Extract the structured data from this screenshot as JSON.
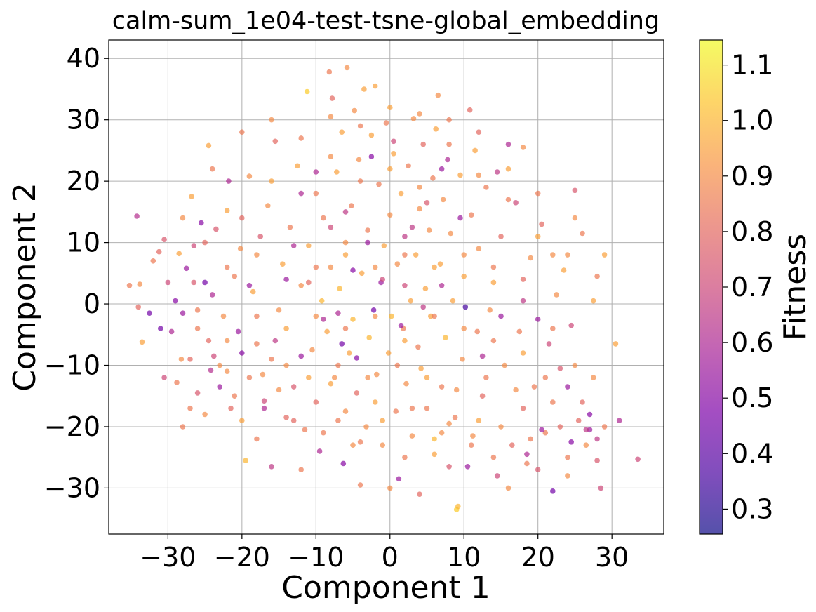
{
  "chart_data": {
    "type": "scatter",
    "title": "calm-sum_1e04-test-tsne-global_embedding",
    "xlabel": "Component 1",
    "ylabel": "Component 2",
    "xlim": [
      -38,
      37
    ],
    "ylim": [
      -37.5,
      43
    ],
    "xticks": [
      -30,
      -20,
      -10,
      0,
      10,
      20,
      30
    ],
    "yticks": [
      -30,
      -20,
      -10,
      0,
      10,
      20,
      30,
      40
    ],
    "grid": true,
    "colormap": "plasma",
    "point_alpha": 0.7,
    "colorbar": {
      "label": "Fitness",
      "range": [
        0.255,
        1.145
      ],
      "ticks": [
        0.3,
        0.4,
        0.5,
        0.6,
        0.7,
        0.8,
        0.9,
        1.0,
        1.1
      ]
    },
    "points": [
      [
        -35.2,
        3.0,
        0.85
      ],
      [
        -34.2,
        14.3,
        0.62
      ],
      [
        -33.8,
        3.2,
        0.9
      ],
      [
        -33.5,
        -6.2,
        0.95
      ],
      [
        -32.5,
        -1.5,
        0.45
      ],
      [
        -31.2,
        8.5,
        0.8
      ],
      [
        -30.5,
        10.5,
        0.75
      ],
      [
        -30.0,
        3.5,
        0.7
      ],
      [
        -29.5,
        -4.5,
        0.6
      ],
      [
        -29.0,
        0.5,
        0.5
      ],
      [
        -28.8,
        -12.8,
        0.85
      ],
      [
        -28.5,
        8.2,
        0.95
      ],
      [
        -28.2,
        -9.0,
        0.9
      ],
      [
        -27.5,
        5.8,
        0.55
      ],
      [
        -27.0,
        -17.0,
        0.85
      ],
      [
        -26.5,
        3.5,
        0.75
      ],
      [
        -26.8,
        17.5,
        0.95
      ],
      [
        -26.0,
        -1.0,
        0.85
      ],
      [
        -25.5,
        13.2,
        0.5
      ],
      [
        -25.0,
        10.0,
        0.8
      ],
      [
        -25.0,
        3.5,
        0.45
      ],
      [
        -24.5,
        -6.0,
        0.8
      ],
      [
        -24.2,
        -10.8,
        0.62
      ],
      [
        -24.5,
        25.8,
        0.95
      ],
      [
        -23.8,
        -8.5,
        0.7
      ],
      [
        -23.5,
        12.2,
        0.75
      ],
      [
        -23.0,
        -13.5,
        0.55
      ],
      [
        -22.5,
        -2.0,
        0.9
      ],
      [
        -22.0,
        15.2,
        0.95
      ],
      [
        -21.8,
        20.0,
        0.6
      ],
      [
        -21.5,
        -17.0,
        0.8
      ],
      [
        -21.0,
        4.5,
        0.85
      ],
      [
        -20.5,
        -4.5,
        0.55
      ],
      [
        -20.2,
        9.0,
        0.9
      ],
      [
        -20.0,
        -19.0,
        0.95
      ],
      [
        -19.5,
        -25.5,
        1.0
      ],
      [
        -19.0,
        20.8,
        0.9
      ],
      [
        -18.5,
        2.0,
        0.95
      ],
      [
        -18.0,
        -6.5,
        0.85
      ],
      [
        -17.5,
        11.0,
        0.75
      ],
      [
        -17.2,
        -11.5,
        0.9
      ],
      [
        -17.0,
        -15.8,
        0.7
      ],
      [
        -16.5,
        16.0,
        0.9
      ],
      [
        -16.0,
        -9.0,
        0.85
      ],
      [
        -15.5,
        26.5,
        0.8
      ],
      [
        -15.0,
        -1.0,
        0.9
      ],
      [
        -14.5,
        6.5,
        0.95
      ],
      [
        -14.0,
        -18.5,
        0.8
      ],
      [
        -13.5,
        12.5,
        0.85
      ],
      [
        -13.0,
        -13.5,
        0.75
      ],
      [
        -12.5,
        22.5,
        0.95
      ],
      [
        -12.0,
        3.0,
        0.9
      ],
      [
        -11.5,
        -20.5,
        0.85
      ],
      [
        -11.2,
        34.6,
        1.05
      ],
      [
        -11.0,
        9.5,
        0.95
      ],
      [
        -10.5,
        -7.5,
        0.9
      ],
      [
        -10.0,
        18.0,
        0.85
      ],
      [
        -9.5,
        -24.0,
        0.6
      ],
      [
        -9.2,
        0.5,
        1.0
      ],
      [
        -9.0,
        14.0,
        0.85
      ],
      [
        -8.5,
        -4.5,
        0.95
      ],
      [
        -8.2,
        37.8,
        0.85
      ],
      [
        -8.0,
        6.0,
        0.9
      ],
      [
        -7.8,
        33.5,
        0.8
      ],
      [
        -7.5,
        -12.0,
        0.9
      ],
      [
        -7.2,
        21.5,
        0.95
      ],
      [
        -7.0,
        -19.0,
        0.85
      ],
      [
        -6.8,
        2.5,
        1.0
      ],
      [
        -6.5,
        28.0,
        0.95
      ],
      [
        -6.3,
        -26.0,
        0.5
      ],
      [
        -6.0,
        10.0,
        0.9
      ],
      [
        -5.8,
        38.5,
        0.9
      ],
      [
        -5.5,
        -8.0,
        0.95
      ],
      [
        -5.2,
        16.0,
        0.85
      ],
      [
        -5.0,
        -2.5,
        1.0
      ],
      [
        -4.8,
        31.5,
        0.9
      ],
      [
        -4.5,
        -14.5,
        0.8
      ],
      [
        -4.2,
        23.5,
        0.9
      ],
      [
        -4.0,
        -29.5,
        0.85
      ],
      [
        -3.8,
        5.0,
        0.95
      ],
      [
        -3.5,
        35.0,
        0.95
      ],
      [
        -3.2,
        -20.0,
        0.9
      ],
      [
        -3.0,
        12.0,
        0.85
      ],
      [
        -2.8,
        -5.5,
        1.0
      ],
      [
        -2.5,
        27.5,
        0.95
      ],
      [
        -2.2,
        -1.0,
        0.45
      ],
      [
        -2.0,
        35.5,
        0.95
      ],
      [
        -1.8,
        -11.5,
        0.9
      ],
      [
        -1.5,
        19.5,
        0.85
      ],
      [
        -1.2,
        3.5,
        0.55
      ],
      [
        -1.0,
        -23.0,
        0.9
      ],
      [
        -0.8,
        9.5,
        0.95
      ],
      [
        -0.5,
        29.5,
        0.85
      ],
      [
        -0.2,
        -8.0,
        0.95
      ],
      [
        0.0,
        14.5,
        0.9
      ],
      [
        0.2,
        -2.0,
        1.0
      ],
      [
        0.5,
        24.5,
        0.95
      ],
      [
        0.8,
        -17.5,
        0.85
      ],
      [
        1.0,
        6.5,
        0.9
      ],
      [
        1.2,
        -28.5,
        0.55
      ],
      [
        1.5,
        18.0,
        0.95
      ],
      [
        1.8,
        -4.0,
        0.85
      ],
      [
        2.0,
        11.0,
        0.65
      ],
      [
        2.2,
        -13.0,
        0.9
      ],
      [
        2.5,
        22.5,
        0.85
      ],
      [
        2.8,
        0.5,
        0.95
      ],
      [
        3.0,
        -21.5,
        0.9
      ],
      [
        3.2,
        30.2,
        0.9
      ],
      [
        3.5,
        8.0,
        0.95
      ],
      [
        3.8,
        -7.0,
        0.85
      ],
      [
        4.0,
        15.5,
        0.9
      ],
      [
        4.2,
        -10.5,
        0.95
      ],
      [
        4.5,
        26.0,
        0.8
      ],
      [
        4.8,
        2.5,
        0.95
      ],
      [
        5.0,
        -17.0,
        0.85
      ],
      [
        5.3,
        12.0,
        0.9
      ],
      [
        5.5,
        -2.0,
        0.95
      ],
      [
        5.8,
        20.5,
        0.85
      ],
      [
        6.0,
        -22.0,
        1.0
      ],
      [
        6.2,
        28.5,
        0.95
      ],
      [
        6.5,
        34.0,
        0.9
      ],
      [
        6.8,
        6.5,
        0.95
      ],
      [
        7.0,
        -13.5,
        0.85
      ],
      [
        7.2,
        17.0,
        0.9
      ],
      [
        7.5,
        -5.5,
        1.0
      ],
      [
        7.8,
        23.5,
        0.6
      ],
      [
        8.0,
        -26.5,
        0.75
      ],
      [
        8.2,
        11.5,
        0.9
      ],
      [
        8.5,
        0.5,
        0.95
      ],
      [
        8.8,
        -18.5,
        0.85
      ],
      [
        9.0,
        -33.5,
        1.05
      ],
      [
        9.2,
        -33.0,
        1.0
      ],
      [
        9.5,
        21.0,
        0.95
      ],
      [
        9.8,
        -9.0,
        0.9
      ],
      [
        10.0,
        4.5,
        0.95
      ],
      [
        10.2,
        -0.5,
        0.35
      ],
      [
        10.5,
        -26.5,
        0.55
      ],
      [
        10.8,
        31.6,
        0.8
      ],
      [
        11.0,
        14.5,
        0.85
      ],
      [
        11.2,
        -21.5,
        0.9
      ],
      [
        11.5,
        25.0,
        0.95
      ],
      [
        11.8,
        -4.5,
        0.85
      ],
      [
        12.0,
        9.0,
        0.9
      ],
      [
        12.5,
        -15.0,
        0.8
      ],
      [
        13.0,
        19.0,
        0.85
      ],
      [
        13.5,
        -1.0,
        0.9
      ],
      [
        14.0,
        3.5,
        0.95
      ],
      [
        14.5,
        -28.0,
        0.7
      ],
      [
        15.0,
        11.0,
        0.8
      ],
      [
        15.5,
        -10.0,
        0.9
      ],
      [
        16.0,
        26.0,
        0.6
      ],
      [
        16.5,
        -23.0,
        0.8
      ],
      [
        17.0,
        16.5,
        0.7
      ],
      [
        17.5,
        -4.5,
        0.85
      ],
      [
        18.0,
        25.5,
        0.9
      ],
      [
        18.5,
        -26.0,
        0.85
      ],
      [
        19.0,
        7.5,
        0.9
      ],
      [
        19.5,
        -13.5,
        0.85
      ],
      [
        20.0,
        -2.5,
        0.55
      ],
      [
        20.5,
        13.0,
        0.8
      ],
      [
        21.0,
        -21.0,
        0.85
      ],
      [
        22.0,
        -30.5,
        0.45
      ],
      [
        22.5,
        1.5,
        0.9
      ],
      [
        23.0,
        -10.5,
        0.75
      ],
      [
        23.5,
        5.5,
        0.95
      ],
      [
        24.0,
        -25.0,
        0.85
      ],
      [
        24.5,
        -3.5,
        0.7
      ],
      [
        25.0,
        14.0,
        0.9
      ],
      [
        25.5,
        -19.0,
        0.8
      ],
      [
        26.0,
        11.5,
        0.85
      ],
      [
        26.5,
        -23.0,
        0.9
      ],
      [
        27.0,
        -20.5,
        0.55
      ],
      [
        27.5,
        0.5,
        0.95
      ],
      [
        28.0,
        -25.5,
        0.75
      ],
      [
        28.5,
        -30.0,
        0.7
      ],
      [
        29.0,
        -20.0,
        0.85
      ],
      [
        30.5,
        -6.5,
        0.95
      ],
      [
        31.0,
        -19.0,
        0.6
      ],
      [
        33.5,
        -25.3,
        0.7
      ],
      [
        -34.0,
        -0.5,
        0.8
      ],
      [
        -30.5,
        -12.0,
        0.7
      ],
      [
        -28.0,
        -20.0,
        0.85
      ],
      [
        -26.0,
        -14.5,
        0.75
      ],
      [
        -22.0,
        -11.0,
        0.9
      ],
      [
        -18.0,
        -22.0,
        0.85
      ],
      [
        -16.0,
        -26.5,
        0.65
      ],
      [
        -14.0,
        -10.0,
        0.9
      ],
      [
        -12.0,
        -27.0,
        0.85
      ],
      [
        -10.0,
        -16.0,
        0.8
      ],
      [
        -8.0,
        -13.0,
        0.95
      ],
      [
        -6.0,
        -17.5,
        0.9
      ],
      [
        -4.0,
        -22.5,
        0.85
      ],
      [
        -2.0,
        -16.0,
        0.95
      ],
      [
        0.0,
        -30.0,
        0.9
      ],
      [
        2.0,
        -25.0,
        0.85
      ],
      [
        4.0,
        -31.0,
        0.8
      ],
      [
        6.0,
        -24.5,
        0.95
      ],
      [
        8.0,
        -19.5,
        0.9
      ],
      [
        12.0,
        -19.0,
        0.95
      ],
      [
        14.0,
        -25.0,
        0.85
      ],
      [
        16.0,
        -30.0,
        0.9
      ],
      [
        18.0,
        -17.0,
        0.8
      ],
      [
        20.0,
        -27.0,
        0.75
      ],
      [
        22.0,
        -16.0,
        0.85
      ],
      [
        24.0,
        -28.0,
        0.9
      ],
      [
        26.0,
        -16.0,
        0.8
      ],
      [
        28.0,
        -22.0,
        0.65
      ],
      [
        -20.0,
        28.0,
        0.85
      ],
      [
        -16.0,
        30.0,
        0.9
      ],
      [
        -12.0,
        27.0,
        0.85
      ],
      [
        -8.0,
        30.5,
        0.9
      ],
      [
        -4.0,
        29.0,
        0.85
      ],
      [
        0.0,
        32.0,
        0.95
      ],
      [
        4.0,
        31.0,
        0.9
      ],
      [
        8.0,
        30.0,
        0.85
      ],
      [
        12.0,
        28.0,
        0.8
      ],
      [
        16.0,
        22.0,
        0.95
      ],
      [
        20.0,
        18.0,
        0.85
      ],
      [
        24.0,
        8.0,
        0.9
      ],
      [
        -24.0,
        22.0,
        0.85
      ],
      [
        -28.0,
        14.0,
        0.9
      ],
      [
        -32.0,
        7.0,
        0.85
      ],
      [
        -20.0,
        14.0,
        0.8
      ],
      [
        -16.0,
        20.0,
        0.95
      ],
      [
        -12.0,
        18.0,
        0.6
      ],
      [
        -8.0,
        24.0,
        0.9
      ],
      [
        -4.0,
        20.0,
        0.85
      ],
      [
        0.0,
        22.0,
        0.95
      ],
      [
        4.0,
        19.0,
        0.9
      ],
      [
        8.0,
        26.0,
        0.85
      ],
      [
        12.0,
        21.0,
        0.9
      ],
      [
        16.0,
        17.0,
        0.85
      ],
      [
        20.0,
        11.0,
        0.95
      ],
      [
        -22.0,
        6.0,
        0.85
      ],
      [
        -18.0,
        8.0,
        0.9
      ],
      [
        -14.0,
        4.0,
        0.55
      ],
      [
        -10.0,
        6.0,
        0.85
      ],
      [
        -6.0,
        8.0,
        0.95
      ],
      [
        -2.0,
        6.0,
        0.9
      ],
      [
        2.0,
        8.0,
        0.85
      ],
      [
        6.0,
        6.0,
        0.95
      ],
      [
        10.0,
        8.0,
        0.9
      ],
      [
        14.0,
        6.0,
        0.85
      ],
      [
        18.0,
        4.0,
        0.8
      ],
      [
        22.0,
        8.0,
        0.9
      ],
      [
        -26.0,
        -4.0,
        0.85
      ],
      [
        -22.0,
        -6.0,
        0.9
      ],
      [
        -18.0,
        -2.0,
        0.85
      ],
      [
        -14.0,
        -4.0,
        0.95
      ],
      [
        -10.0,
        -2.0,
        0.9
      ],
      [
        -6.0,
        -4.0,
        0.85
      ],
      [
        -2.0,
        -2.0,
        0.9
      ],
      [
        2.0,
        -6.0,
        0.95
      ],
      [
        6.0,
        -2.0,
        0.85
      ],
      [
        10.0,
        -4.0,
        0.9
      ],
      [
        14.0,
        -6.0,
        0.85
      ],
      [
        18.0,
        -8.0,
        0.95
      ],
      [
        22.0,
        -4.0,
        0.85
      ],
      [
        -27.0,
        -9.0,
        0.8
      ],
      [
        -23.0,
        -10.0,
        0.9
      ],
      [
        -19.0,
        -12.0,
        0.85
      ],
      [
        -15.0,
        -14.0,
        0.9
      ],
      [
        -11.0,
        -12.0,
        0.95
      ],
      [
        -7.0,
        -10.0,
        0.85
      ],
      [
        -3.0,
        -12.0,
        0.9
      ],
      [
        1.0,
        -10.0,
        0.85
      ],
      [
        5.0,
        -12.0,
        0.95
      ],
      [
        9.0,
        -14.0,
        0.9
      ],
      [
        13.0,
        -12.0,
        0.85
      ],
      [
        17.0,
        -14.0,
        0.9
      ],
      [
        21.0,
        -12.0,
        0.85
      ],
      [
        25.0,
        -10.0,
        0.9
      ],
      [
        -13.0,
        -19.0,
        0.8
      ],
      [
        -9.0,
        -21.0,
        0.85
      ],
      [
        -5.0,
        -23.0,
        0.9
      ],
      [
        -1.0,
        -19.0,
        0.95
      ],
      [
        3.0,
        -17.0,
        0.85
      ],
      [
        7.0,
        -21.0,
        0.9
      ],
      [
        11.0,
        -23.0,
        0.85
      ],
      [
        15.0,
        -20.0,
        0.9
      ],
      [
        19.0,
        -22.0,
        0.85
      ],
      [
        23.0,
        -20.0,
        0.8
      ],
      [
        27.0,
        -18.0,
        0.5
      ],
      [
        -17.0,
        -17.0,
        0.6
      ],
      [
        -21.0,
        -15.0,
        0.85
      ],
      [
        -25.0,
        -18.0,
        0.9
      ],
      [
        -6.5,
        -6.5,
        0.45
      ],
      [
        -9.0,
        -2.5,
        0.6
      ],
      [
        -4.5,
        -8.8,
        0.5
      ],
      [
        -1.0,
        4.0,
        0.7
      ],
      [
        1.5,
        -3.5,
        0.55
      ],
      [
        4.5,
        -0.5,
        0.65
      ],
      [
        -7.0,
        -1.5,
        0.6
      ],
      [
        -11.0,
        3.5,
        0.8
      ],
      [
        -5.0,
        5.5,
        0.5
      ],
      [
        2.0,
        3.0,
        0.7
      ],
      [
        7.0,
        3.0,
        0.6
      ],
      [
        -3.0,
        10.0,
        0.55
      ],
      [
        3.0,
        12.5,
        0.65
      ],
      [
        -8.0,
        12.5,
        0.7
      ],
      [
        -13.0,
        9.5,
        0.6
      ],
      [
        9.5,
        14.0,
        0.55
      ],
      [
        -6.0,
        15.0,
        0.65
      ],
      [
        5.0,
        16.5,
        0.75
      ],
      [
        -10.0,
        21.5,
        0.6
      ],
      [
        0.5,
        26.5,
        0.7
      ],
      [
        -2.5,
        24.0,
        0.5
      ],
      [
        7.0,
        22.0,
        0.55
      ],
      [
        14.5,
        21.5,
        0.65
      ],
      [
        18.5,
        -24.5,
        0.6
      ],
      [
        20.5,
        -20.5,
        0.55
      ],
      [
        24.5,
        -22.5,
        0.5
      ],
      [
        26.5,
        -20.5,
        0.65
      ],
      [
        -28.0,
        -1.5,
        0.55
      ],
      [
        -24.0,
        1.5,
        0.6
      ],
      [
        -20.0,
        -8.0,
        0.5
      ],
      [
        -15.5,
        -6.0,
        0.65
      ],
      [
        -12.0,
        -8.5,
        0.55
      ],
      [
        -26.5,
        9.5,
        0.7
      ],
      [
        -31.0,
        -4.0,
        0.45
      ],
      [
        -19.0,
        3.0,
        0.55
      ],
      [
        12.5,
        -8.5,
        0.6
      ],
      [
        15.0,
        -2.0,
        0.55
      ],
      [
        18.0,
        0.5,
        0.65
      ],
      [
        21.5,
        -6.5,
        0.7
      ],
      [
        24.0,
        -13.5,
        0.55
      ],
      [
        28.0,
        4.5,
        0.85
      ],
      [
        25.0,
        18.5,
        0.75
      ],
      [
        29.0,
        8.0,
        0.95
      ],
      [
        27.5,
        -12.0,
        0.9
      ]
    ]
  }
}
